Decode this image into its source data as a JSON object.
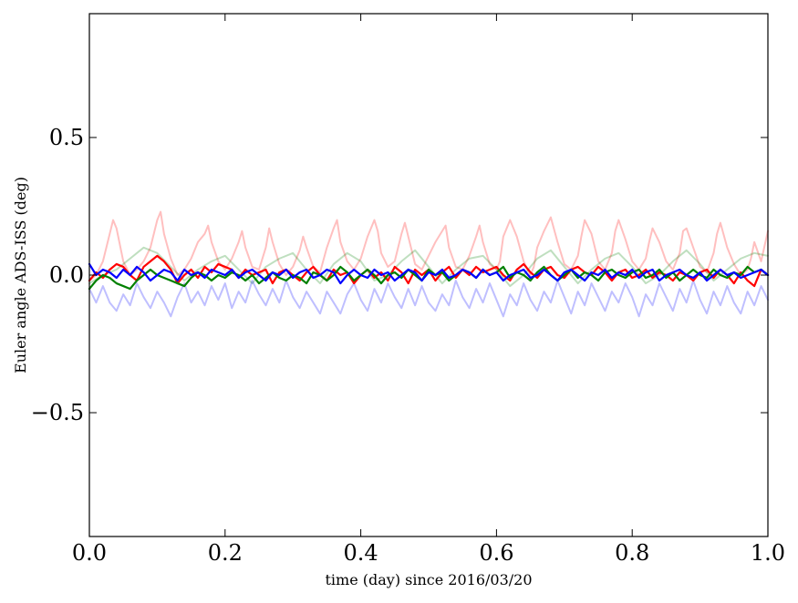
{
  "chart_data": {
    "type": "line",
    "title": "",
    "xlabel": "time (day) since 2016/03/20",
    "ylabel": "Euler angle ADS-ISS (deg)",
    "xlim": [
      0.0,
      1.0
    ],
    "ylim": [
      -0.95,
      0.95
    ],
    "grid": false,
    "legend": "none",
    "x_ticks": [
      0.0,
      0.2,
      0.4,
      0.6,
      0.8,
      1.0
    ],
    "x_tick_labels": [
      "0.0",
      "0.2",
      "0.4",
      "0.6",
      "0.8",
      "1.0"
    ],
    "y_ticks": [
      -0.5,
      0.0,
      0.5
    ],
    "y_tick_labels": [
      "−0.5",
      "0.0",
      "0.5"
    ],
    "series": [
      {
        "color": "#ff0000",
        "opacity": 0.25,
        "x": [
          0.0,
          0.01,
          0.02,
          0.03,
          0.035,
          0.04,
          0.05,
          0.06,
          0.07,
          0.08,
          0.09,
          0.1,
          0.105,
          0.11,
          0.12,
          0.13,
          0.14,
          0.15,
          0.16,
          0.17,
          0.175,
          0.18,
          0.19,
          0.2,
          0.21,
          0.22,
          0.225,
          0.23,
          0.24,
          0.25,
          0.26,
          0.265,
          0.27,
          0.28,
          0.29,
          0.3,
          0.31,
          0.315,
          0.32,
          0.33,
          0.34,
          0.35,
          0.36,
          0.365,
          0.37,
          0.38,
          0.39,
          0.4,
          0.41,
          0.42,
          0.425,
          0.43,
          0.44,
          0.45,
          0.46,
          0.465,
          0.47,
          0.48,
          0.49,
          0.5,
          0.51,
          0.52,
          0.525,
          0.53,
          0.54,
          0.55,
          0.56,
          0.57,
          0.575,
          0.58,
          0.59,
          0.6,
          0.605,
          0.61,
          0.62,
          0.63,
          0.64,
          0.65,
          0.655,
          0.66,
          0.67,
          0.68,
          0.69,
          0.7,
          0.71,
          0.72,
          0.725,
          0.73,
          0.74,
          0.75,
          0.76,
          0.77,
          0.775,
          0.78,
          0.79,
          0.8,
          0.81,
          0.82,
          0.825,
          0.83,
          0.84,
          0.85,
          0.86,
          0.87,
          0.875,
          0.88,
          0.89,
          0.9,
          0.91,
          0.92,
          0.925,
          0.93,
          0.94,
          0.95,
          0.96,
          0.97,
          0.975,
          0.98,
          0.99,
          1.0
        ],
        "y": [
          -0.02,
          0.0,
          0.05,
          0.15,
          0.2,
          0.17,
          0.05,
          0.0,
          0.02,
          0.05,
          0.1,
          0.2,
          0.23,
          0.15,
          0.06,
          0.0,
          0.02,
          0.06,
          0.12,
          0.15,
          0.18,
          0.12,
          0.05,
          0.02,
          0.06,
          0.12,
          0.16,
          0.1,
          0.03,
          0.02,
          0.1,
          0.17,
          0.12,
          0.04,
          0.0,
          0.03,
          0.09,
          0.14,
          0.1,
          0.03,
          0.01,
          0.1,
          0.17,
          0.2,
          0.12,
          0.05,
          0.02,
          0.06,
          0.14,
          0.2,
          0.16,
          0.08,
          0.03,
          0.05,
          0.15,
          0.19,
          0.14,
          0.04,
          0.02,
          0.07,
          0.12,
          0.16,
          0.18,
          0.1,
          0.03,
          0.02,
          0.07,
          0.14,
          0.18,
          0.12,
          0.04,
          0.02,
          0.05,
          0.14,
          0.2,
          0.14,
          0.05,
          0.0,
          0.03,
          0.1,
          0.16,
          0.21,
          0.12,
          0.04,
          0.02,
          0.07,
          0.14,
          0.2,
          0.15,
          0.05,
          0.02,
          0.08,
          0.16,
          0.2,
          0.13,
          0.05,
          0.02,
          0.06,
          0.12,
          0.17,
          0.12,
          0.05,
          0.02,
          0.08,
          0.16,
          0.17,
          0.1,
          0.03,
          0.01,
          0.08,
          0.15,
          0.19,
          0.1,
          0.04,
          0.0,
          0.02,
          0.06,
          0.12,
          0.05,
          0.16
        ]
      },
      {
        "color": "#008000",
        "opacity": 0.25,
        "x": [
          0.0,
          0.02,
          0.04,
          0.06,
          0.08,
          0.1,
          0.12,
          0.14,
          0.16,
          0.18,
          0.2,
          0.22,
          0.24,
          0.26,
          0.28,
          0.3,
          0.32,
          0.34,
          0.36,
          0.38,
          0.4,
          0.42,
          0.44,
          0.46,
          0.48,
          0.5,
          0.52,
          0.54,
          0.56,
          0.58,
          0.6,
          0.62,
          0.64,
          0.66,
          0.68,
          0.7,
          0.72,
          0.74,
          0.76,
          0.78,
          0.8,
          0.82,
          0.84,
          0.86,
          0.88,
          0.9,
          0.92,
          0.94,
          0.96,
          0.98,
          1.0
        ],
        "y": [
          -0.03,
          0.0,
          0.02,
          0.06,
          0.1,
          0.08,
          0.03,
          -0.02,
          0.02,
          0.05,
          0.07,
          0.02,
          -0.03,
          0.03,
          0.06,
          0.08,
          0.02,
          -0.03,
          0.04,
          0.08,
          0.05,
          -0.02,
          0.0,
          0.05,
          0.09,
          0.03,
          -0.03,
          0.02,
          0.06,
          0.07,
          0.02,
          -0.04,
          0.0,
          0.06,
          0.09,
          0.03,
          -0.03,
          0.02,
          0.06,
          0.08,
          0.03,
          -0.03,
          0.0,
          0.05,
          0.09,
          0.04,
          -0.02,
          0.02,
          0.06,
          0.08,
          0.07
        ]
      },
      {
        "color": "#0000ff",
        "opacity": 0.25,
        "x": [
          0.0,
          0.01,
          0.02,
          0.03,
          0.04,
          0.05,
          0.06,
          0.07,
          0.08,
          0.09,
          0.1,
          0.11,
          0.12,
          0.13,
          0.14,
          0.15,
          0.16,
          0.17,
          0.18,
          0.19,
          0.2,
          0.21,
          0.22,
          0.23,
          0.24,
          0.25,
          0.26,
          0.27,
          0.28,
          0.29,
          0.3,
          0.31,
          0.32,
          0.33,
          0.34,
          0.35,
          0.36,
          0.37,
          0.38,
          0.39,
          0.4,
          0.41,
          0.42,
          0.43,
          0.44,
          0.45,
          0.46,
          0.47,
          0.48,
          0.49,
          0.5,
          0.51,
          0.52,
          0.53,
          0.54,
          0.55,
          0.56,
          0.57,
          0.58,
          0.59,
          0.6,
          0.61,
          0.62,
          0.63,
          0.64,
          0.65,
          0.66,
          0.67,
          0.68,
          0.69,
          0.7,
          0.71,
          0.72,
          0.73,
          0.74,
          0.75,
          0.76,
          0.77,
          0.78,
          0.79,
          0.8,
          0.81,
          0.82,
          0.83,
          0.84,
          0.85,
          0.86,
          0.87,
          0.88,
          0.89,
          0.9,
          0.91,
          0.92,
          0.93,
          0.94,
          0.95,
          0.96,
          0.97,
          0.98,
          0.99,
          1.0
        ],
        "y": [
          -0.05,
          -0.1,
          -0.04,
          -0.1,
          -0.13,
          -0.07,
          -0.11,
          -0.03,
          -0.08,
          -0.12,
          -0.06,
          -0.1,
          -0.15,
          -0.08,
          -0.03,
          -0.1,
          -0.06,
          -0.11,
          -0.04,
          -0.09,
          -0.03,
          -0.12,
          -0.06,
          -0.1,
          -0.02,
          -0.07,
          -0.11,
          -0.05,
          -0.1,
          -0.02,
          -0.08,
          -0.12,
          -0.06,
          -0.1,
          -0.14,
          -0.06,
          -0.1,
          -0.14,
          -0.07,
          -0.03,
          -0.09,
          -0.13,
          -0.05,
          -0.1,
          -0.03,
          -0.08,
          -0.12,
          -0.05,
          -0.11,
          -0.04,
          -0.1,
          -0.13,
          -0.07,
          -0.11,
          -0.02,
          -0.08,
          -0.12,
          -0.05,
          -0.1,
          -0.03,
          -0.09,
          -0.15,
          -0.07,
          -0.11,
          -0.03,
          -0.09,
          -0.13,
          -0.06,
          -0.1,
          -0.02,
          -0.08,
          -0.14,
          -0.06,
          -0.11,
          -0.03,
          -0.08,
          -0.13,
          -0.06,
          -0.1,
          -0.03,
          -0.08,
          -0.15,
          -0.07,
          -0.11,
          -0.03,
          -0.08,
          -0.13,
          -0.05,
          -0.1,
          -0.02,
          -0.09,
          -0.14,
          -0.06,
          -0.11,
          -0.04,
          -0.1,
          -0.14,
          -0.06,
          -0.11,
          -0.04,
          -0.09
        ]
      },
      {
        "color": "#ff0000",
        "opacity": 1.0,
        "x": [
          0.0,
          0.01,
          0.02,
          0.03,
          0.04,
          0.05,
          0.06,
          0.07,
          0.08,
          0.09,
          0.1,
          0.11,
          0.12,
          0.13,
          0.14,
          0.15,
          0.16,
          0.17,
          0.18,
          0.19,
          0.2,
          0.21,
          0.22,
          0.23,
          0.24,
          0.25,
          0.26,
          0.27,
          0.28,
          0.29,
          0.3,
          0.31,
          0.32,
          0.33,
          0.34,
          0.35,
          0.36,
          0.37,
          0.38,
          0.39,
          0.4,
          0.41,
          0.42,
          0.43,
          0.44,
          0.45,
          0.46,
          0.47,
          0.48,
          0.49,
          0.5,
          0.51,
          0.52,
          0.53,
          0.54,
          0.55,
          0.56,
          0.57,
          0.58,
          0.59,
          0.6,
          0.61,
          0.62,
          0.63,
          0.64,
          0.65,
          0.66,
          0.67,
          0.68,
          0.69,
          0.7,
          0.71,
          0.72,
          0.73,
          0.74,
          0.75,
          0.76,
          0.77,
          0.78,
          0.79,
          0.8,
          0.81,
          0.82,
          0.83,
          0.84,
          0.85,
          0.86,
          0.87,
          0.88,
          0.89,
          0.9,
          0.91,
          0.92,
          0.93,
          0.94,
          0.95,
          0.96,
          0.97,
          0.98,
          0.99,
          1.0
        ],
        "y": [
          -0.02,
          0.01,
          -0.01,
          0.02,
          0.04,
          0.03,
          0.0,
          -0.02,
          0.03,
          0.05,
          0.07,
          0.05,
          0.02,
          -0.03,
          0.0,
          0.02,
          -0.01,
          0.03,
          0.01,
          0.04,
          0.03,
          0.02,
          -0.01,
          0.02,
          0.0,
          0.01,
          0.02,
          -0.03,
          0.01,
          0.02,
          0.0,
          -0.02,
          0.01,
          0.03,
          0.0,
          -0.02,
          0.02,
          0.0,
          0.01,
          -0.03,
          0.0,
          0.02,
          -0.01,
          0.01,
          -0.02,
          0.03,
          0.01,
          -0.03,
          0.02,
          0.0,
          0.02,
          -0.02,
          0.01,
          0.03,
          -0.01,
          0.02,
          0.0,
          0.03,
          0.01,
          0.02,
          0.03,
          0.0,
          -0.02,
          0.02,
          0.04,
          0.01,
          -0.01,
          0.02,
          0.03,
          0.0,
          -0.01,
          0.02,
          0.03,
          0.01,
          0.0,
          0.03,
          0.01,
          -0.02,
          0.01,
          0.02,
          -0.01,
          0.0,
          0.02,
          -0.01,
          0.01,
          0.0,
          -0.02,
          0.01,
          0.0,
          -0.02,
          0.01,
          0.02,
          -0.01,
          0.02,
          0.0,
          -0.03,
          0.01,
          -0.02,
          -0.04,
          0.02,
          0.0
        ]
      },
      {
        "color": "#008000",
        "opacity": 1.0,
        "x": [
          0.0,
          0.01,
          0.02,
          0.03,
          0.04,
          0.05,
          0.06,
          0.07,
          0.08,
          0.09,
          0.1,
          0.11,
          0.12,
          0.13,
          0.14,
          0.15,
          0.16,
          0.17,
          0.18,
          0.19,
          0.2,
          0.21,
          0.22,
          0.23,
          0.24,
          0.25,
          0.26,
          0.27,
          0.28,
          0.29,
          0.3,
          0.31,
          0.32,
          0.33,
          0.34,
          0.35,
          0.36,
          0.37,
          0.38,
          0.39,
          0.4,
          0.41,
          0.42,
          0.43,
          0.44,
          0.45,
          0.46,
          0.47,
          0.48,
          0.49,
          0.5,
          0.51,
          0.52,
          0.53,
          0.54,
          0.55,
          0.56,
          0.57,
          0.58,
          0.59,
          0.6,
          0.61,
          0.62,
          0.63,
          0.64,
          0.65,
          0.66,
          0.67,
          0.68,
          0.69,
          0.7,
          0.71,
          0.72,
          0.73,
          0.74,
          0.75,
          0.76,
          0.77,
          0.78,
          0.79,
          0.8,
          0.81,
          0.82,
          0.83,
          0.84,
          0.85,
          0.86,
          0.87,
          0.88,
          0.89,
          0.9,
          0.91,
          0.92,
          0.93,
          0.94,
          0.95,
          0.96,
          0.97,
          0.98,
          0.99,
          1.0
        ],
        "y": [
          -0.05,
          -0.02,
          0.0,
          -0.01,
          -0.03,
          -0.04,
          -0.05,
          -0.02,
          0.0,
          0.02,
          0.0,
          -0.01,
          -0.02,
          -0.03,
          -0.04,
          -0.01,
          0.01,
          0.0,
          -0.02,
          0.0,
          -0.01,
          0.01,
          0.0,
          -0.02,
          0.0,
          -0.03,
          -0.01,
          0.01,
          -0.01,
          -0.02,
          0.0,
          -0.01,
          -0.03,
          0.01,
          0.0,
          -0.02,
          0.0,
          0.03,
          0.01,
          -0.02,
          0.0,
          0.02,
          0.0,
          -0.03,
          0.0,
          0.01,
          -0.01,
          0.02,
          0.0,
          -0.02,
          0.02,
          0.0,
          0.01,
          -0.02,
          0.0,
          0.02,
          0.01,
          -0.01,
          0.02,
          0.0,
          0.01,
          0.03,
          -0.01,
          0.01,
          0.0,
          -0.02,
          0.01,
          0.03,
          0.0,
          -0.02,
          0.0,
          0.02,
          -0.01,
          0.01,
          0.0,
          -0.02,
          0.01,
          0.02,
          0.0,
          -0.01,
          0.01,
          0.02,
          -0.01,
          0.0,
          0.02,
          -0.01,
          0.01,
          -0.02,
          0.0,
          0.02,
          0.0,
          -0.01,
          0.02,
          0.0,
          -0.01,
          0.01,
          0.0,
          0.03,
          0.01,
          0.02,
          0.0
        ]
      },
      {
        "color": "#0000ff",
        "opacity": 1.0,
        "x": [
          0.0,
          0.01,
          0.02,
          0.03,
          0.04,
          0.05,
          0.06,
          0.07,
          0.08,
          0.09,
          0.1,
          0.11,
          0.12,
          0.13,
          0.14,
          0.15,
          0.16,
          0.17,
          0.18,
          0.19,
          0.2,
          0.21,
          0.22,
          0.23,
          0.24,
          0.25,
          0.26,
          0.27,
          0.28,
          0.29,
          0.3,
          0.31,
          0.32,
          0.33,
          0.34,
          0.35,
          0.36,
          0.37,
          0.38,
          0.39,
          0.4,
          0.41,
          0.42,
          0.43,
          0.44,
          0.45,
          0.46,
          0.47,
          0.48,
          0.49,
          0.5,
          0.51,
          0.52,
          0.53,
          0.54,
          0.55,
          0.56,
          0.57,
          0.58,
          0.59,
          0.6,
          0.61,
          0.62,
          0.63,
          0.64,
          0.65,
          0.66,
          0.67,
          0.68,
          0.69,
          0.7,
          0.71,
          0.72,
          0.73,
          0.74,
          0.75,
          0.76,
          0.77,
          0.78,
          0.79,
          0.8,
          0.81,
          0.82,
          0.83,
          0.84,
          0.85,
          0.86,
          0.87,
          0.88,
          0.89,
          0.9,
          0.91,
          0.92,
          0.93,
          0.94,
          0.95,
          0.96,
          0.97,
          0.98,
          0.99,
          1.0
        ],
        "y": [
          0.04,
          0.0,
          0.02,
          0.01,
          -0.01,
          0.02,
          0.0,
          0.03,
          0.01,
          -0.02,
          0.0,
          0.02,
          0.01,
          -0.02,
          0.02,
          0.0,
          0.01,
          -0.01,
          0.02,
          0.01,
          0.0,
          0.02,
          -0.01,
          0.01,
          0.02,
          0.0,
          -0.02,
          0.01,
          0.0,
          0.02,
          -0.01,
          0.01,
          0.02,
          -0.01,
          0.0,
          0.02,
          0.01,
          -0.03,
          0.0,
          0.02,
          0.0,
          -0.01,
          0.02,
          0.0,
          0.01,
          -0.02,
          0.0,
          0.02,
          0.01,
          -0.02,
          0.01,
          0.0,
          0.02,
          -0.01,
          0.0,
          0.02,
          0.01,
          -0.01,
          0.02,
          0.0,
          0.01,
          -0.02,
          0.0,
          0.01,
          0.02,
          -0.01,
          0.0,
          0.02,
          0.0,
          -0.02,
          0.01,
          0.02,
          0.0,
          -0.02,
          0.01,
          0.0,
          0.02,
          -0.01,
          0.01,
          0.0,
          0.02,
          -0.01,
          0.01,
          0.02,
          -0.02,
          0.0,
          0.01,
          0.02,
          0.0,
          -0.01,
          0.01,
          -0.02,
          0.0,
          0.02,
          0.0,
          0.01,
          -0.01,
          0.0,
          0.01,
          0.02,
          0.0
        ]
      }
    ]
  }
}
